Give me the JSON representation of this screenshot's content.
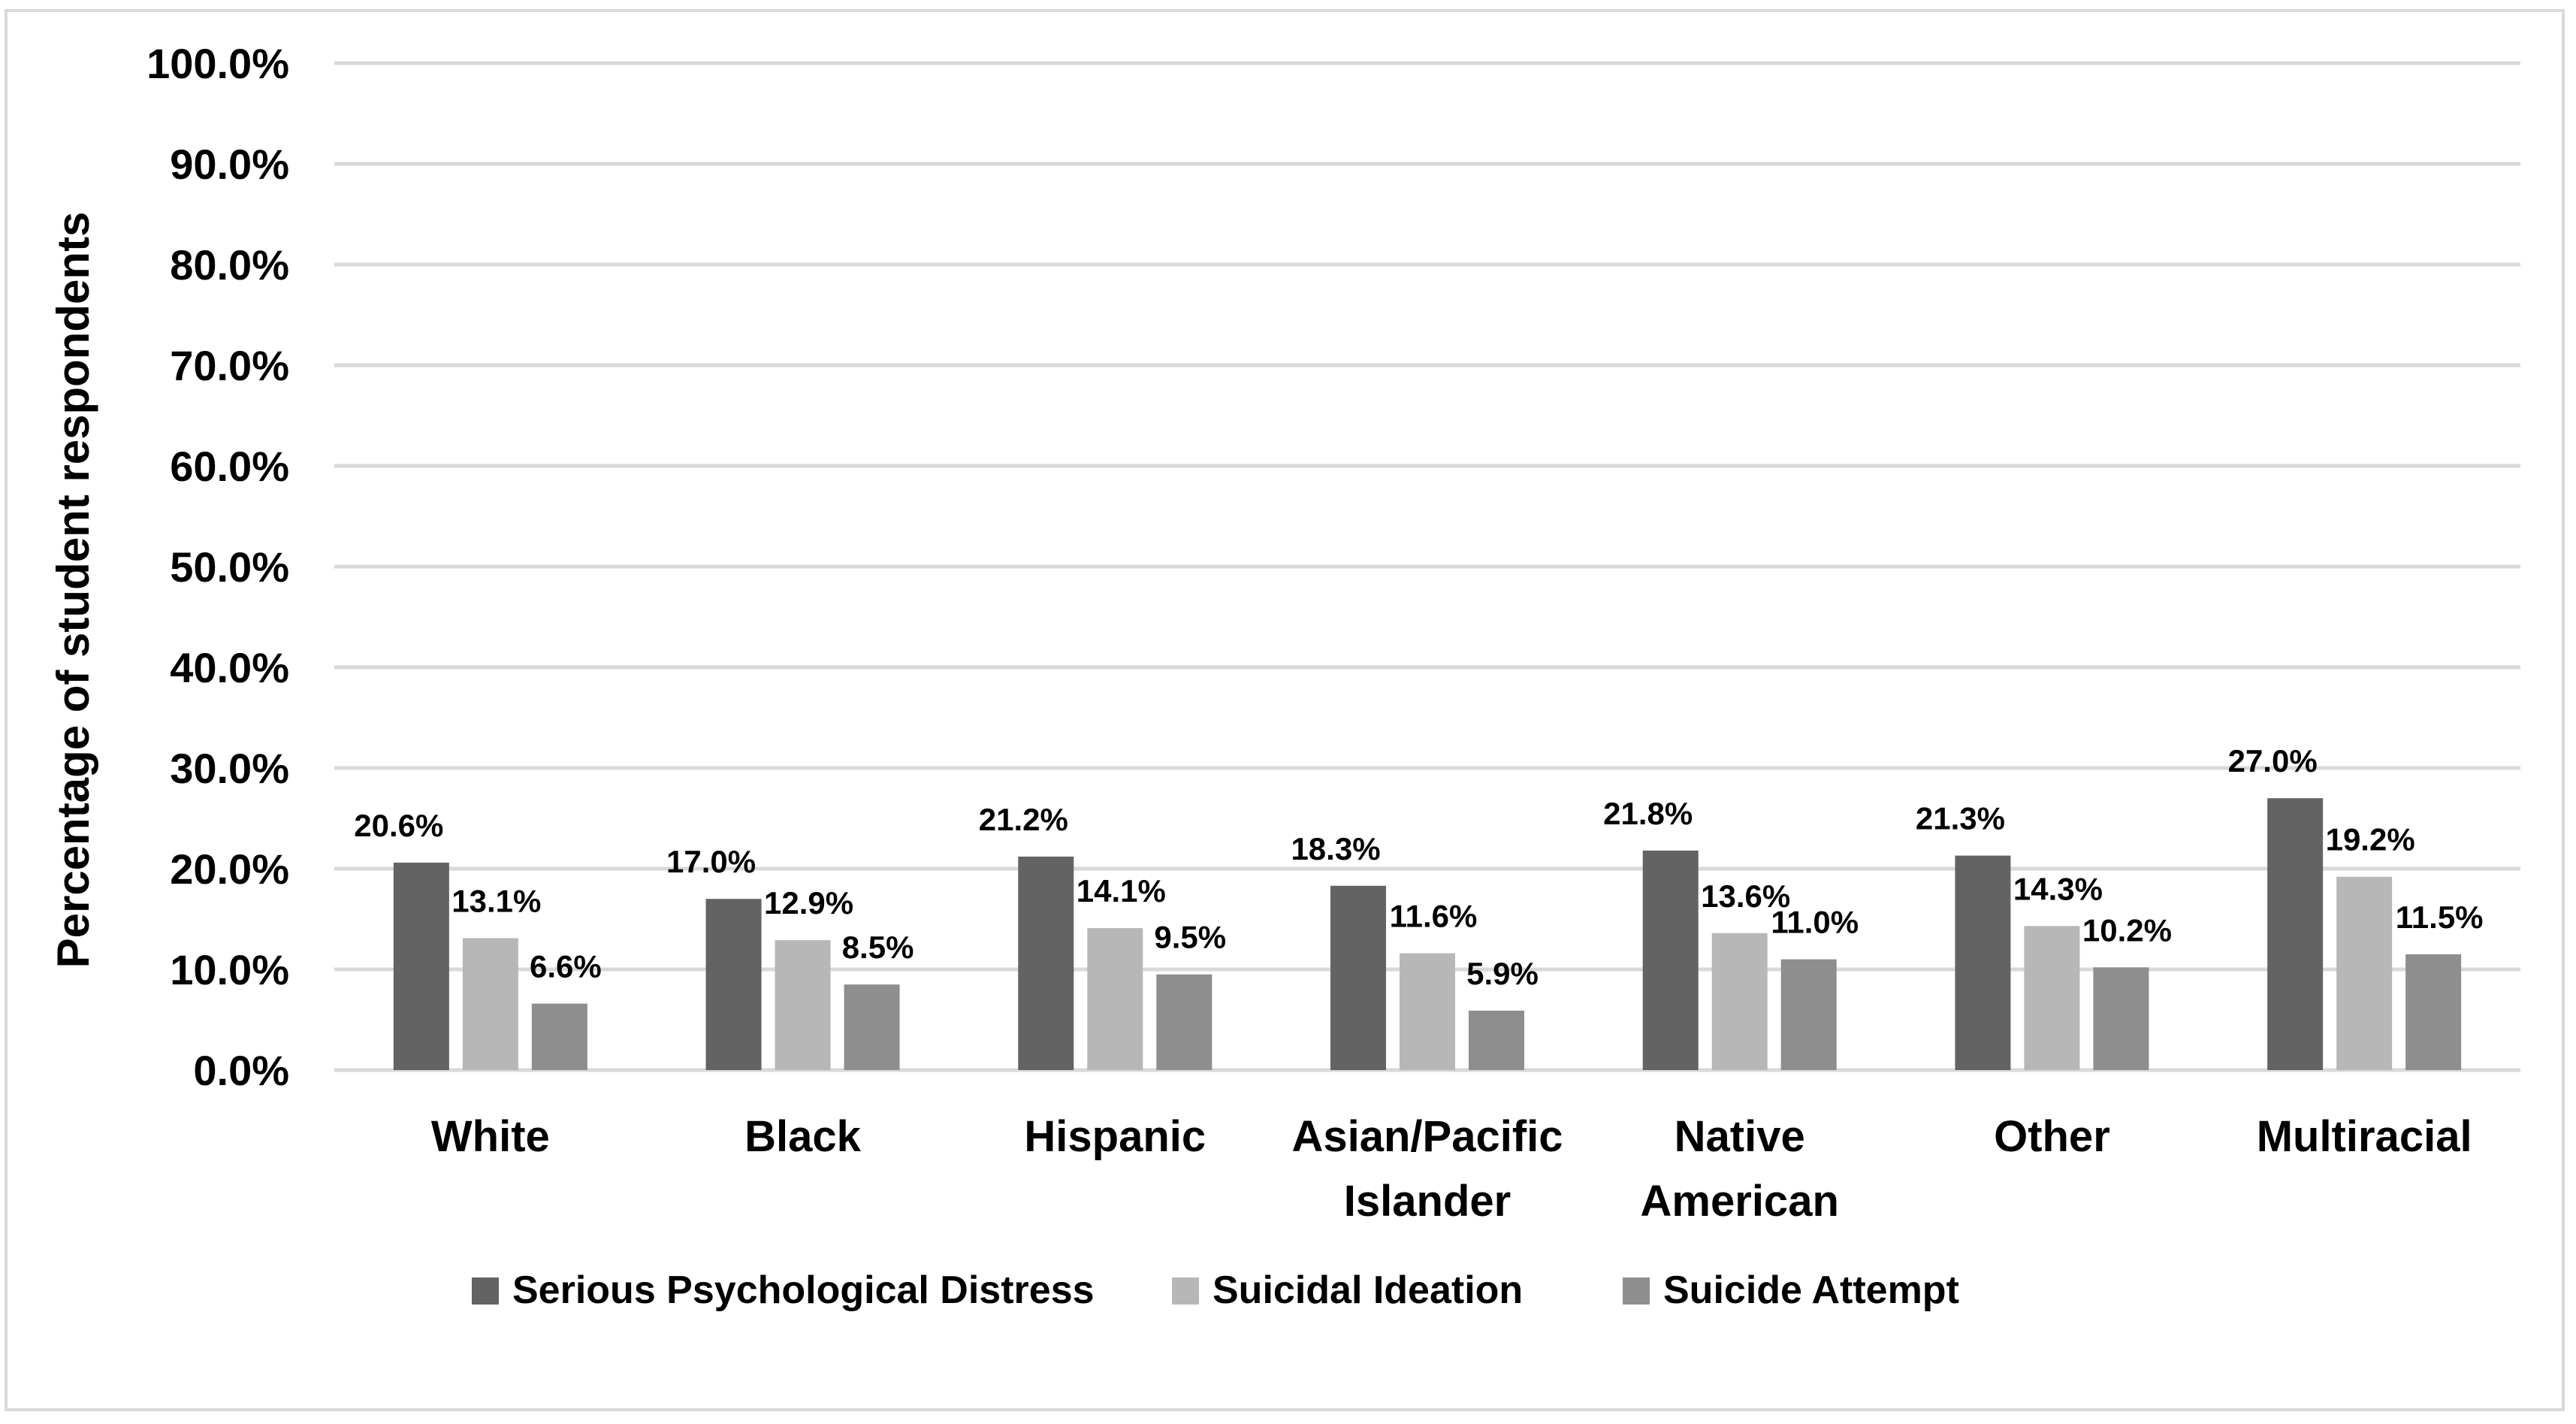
{
  "chart_data": {
    "type": "bar",
    "title": "",
    "xlabel": "",
    "ylabel": "Percentage of student respondents",
    "ylim": [
      0,
      100
    ],
    "yticks": [
      "0.0%",
      "10.0%",
      "20.0%",
      "30.0%",
      "40.0%",
      "50.0%",
      "60.0%",
      "70.0%",
      "80.0%",
      "90.0%",
      "100.0%"
    ],
    "grid": true,
    "legend_position": "bottom",
    "categories": [
      [
        "White"
      ],
      [
        "Black"
      ],
      [
        "Hispanic"
      ],
      [
        "Asian/Pacific",
        "Islander"
      ],
      [
        "Native",
        "American"
      ],
      [
        "Other"
      ],
      [
        "Multiracial"
      ]
    ],
    "series": [
      {
        "name": "Serious Psychological Distress",
        "color": "#636363",
        "values": [
          20.6,
          17.0,
          21.2,
          18.3,
          21.8,
          21.3,
          27.0
        ],
        "labels": [
          "20.6%",
          "17.0%",
          "21.2%",
          "18.3%",
          "21.8%",
          "21.3%",
          "27.0%"
        ]
      },
      {
        "name": "Suicidal Ideation",
        "color": "#b7b7b7",
        "values": [
          13.1,
          12.9,
          14.1,
          11.6,
          13.6,
          14.3,
          19.2
        ],
        "labels": [
          "13.1%",
          "12.9%",
          "14.1%",
          "11.6%",
          "13.6%",
          "14.3%",
          "19.2%"
        ]
      },
      {
        "name": "Suicide Attempt",
        "color": "#8e8e8e",
        "values": [
          6.6,
          8.5,
          9.5,
          5.9,
          11.0,
          10.2,
          11.5
        ],
        "labels": [
          "6.6%",
          "8.5%",
          "9.5%",
          "5.9%",
          "11.0%",
          "10.2%",
          "11.5%"
        ]
      }
    ],
    "gridline_color": "#d9d9d9",
    "border_color": "#d9d9d9"
  }
}
